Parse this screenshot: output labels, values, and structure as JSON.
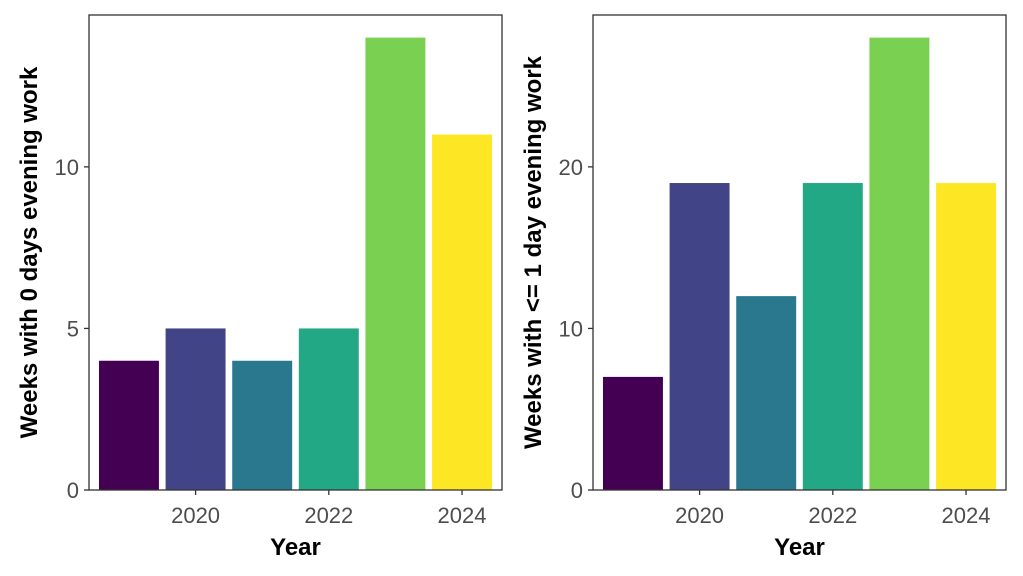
{
  "chart_data": [
    {
      "type": "bar",
      "xlabel": "Year",
      "ylabel": "Weeks with 0 days evening work",
      "x": [
        2019,
        2020,
        2021,
        2022,
        2023,
        2024
      ],
      "values": [
        4,
        5,
        4,
        5,
        14,
        11
      ],
      "colors": [
        "#440154",
        "#414487",
        "#2a788e",
        "#22a884",
        "#7ad151",
        "#fde725"
      ],
      "xticks": [
        2020,
        2022,
        2024
      ],
      "yticks": [
        0,
        5,
        10
      ],
      "xlim": [
        2018.4,
        2024.6
      ],
      "ylim": [
        0,
        14.7
      ],
      "grid": false
    },
    {
      "type": "bar",
      "xlabel": "Year",
      "ylabel": "Weeks with <= 1 day evening work",
      "x": [
        2019,
        2020,
        2021,
        2022,
        2023,
        2024
      ],
      "values": [
        7,
        19,
        12,
        19,
        28,
        19
      ],
      "colors": [
        "#440154",
        "#414487",
        "#2a788e",
        "#22a884",
        "#7ad151",
        "#fde725"
      ],
      "xticks": [
        2020,
        2022,
        2024
      ],
      "yticks": [
        0,
        10,
        20
      ],
      "xlim": [
        2018.4,
        2024.6
      ],
      "ylim": [
        0,
        29.4
      ],
      "grid": false
    }
  ]
}
